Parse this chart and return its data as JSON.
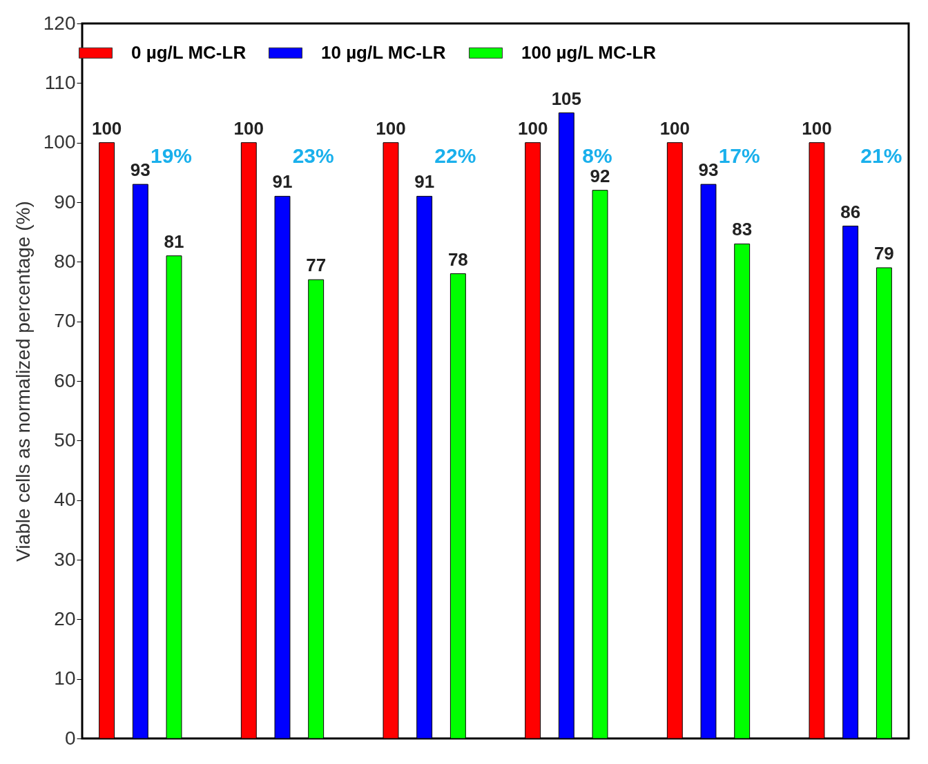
{
  "chart_data": {
    "type": "bar",
    "ylabel": "Viable cells as normalized percentage (%)",
    "categories": [
      null,
      null,
      null,
      null,
      null,
      null
    ],
    "series": [
      {
        "name": "0 µg/L MC-LR",
        "color": "#ff0000",
        "values": [
          100,
          100,
          100,
          100,
          100,
          100
        ]
      },
      {
        "name": "10 µg/L MC-LR",
        "color": "#0000ff",
        "values": [
          93,
          91,
          91,
          105,
          93,
          86
        ]
      },
      {
        "name": "100 µg/L MC-LR",
        "color": "#00ff00",
        "values": [
          81,
          77,
          78,
          92,
          83,
          79
        ]
      }
    ],
    "ylim": [
      0,
      120
    ],
    "yticks": [
      0,
      10,
      20,
      30,
      40,
      50,
      60,
      70,
      80,
      90,
      100,
      110,
      120
    ],
    "annotations": [
      "19%",
      "23%",
      "22%",
      "8%",
      "17%",
      "21%"
    ],
    "data_labels": true,
    "grid": false,
    "legend": "top",
    "tick_labels": "y"
  }
}
